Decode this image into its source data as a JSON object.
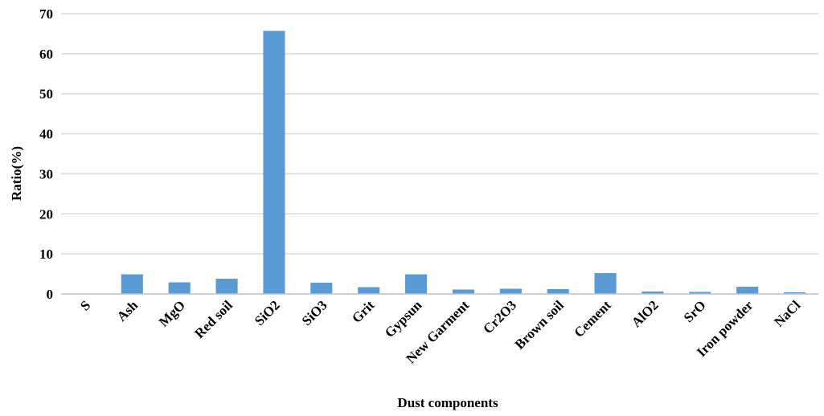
{
  "chart_data": {
    "type": "bar",
    "title": "",
    "xlabel": "Dust components",
    "ylabel": "Ratio(%)",
    "ylim": [
      0,
      70
    ],
    "yticks": [
      0,
      10,
      20,
      30,
      40,
      50,
      60,
      70
    ],
    "grid": "horizontal",
    "legend": "none",
    "categories": [
      "S",
      "Ash",
      "MgO",
      "Red soil",
      "SiO2",
      "SiO3",
      "Grit",
      "Gypsun",
      "New Garment",
      "Cr2O3",
      "Brown soil",
      "Cement",
      "AlO2",
      "SrO",
      "Iron powder",
      "NaCl"
    ],
    "values": [
      0,
      4.9,
      2.9,
      3.8,
      65.7,
      2.8,
      1.7,
      4.9,
      1.1,
      1.3,
      1.2,
      5.2,
      0.6,
      0.5,
      1.8,
      0.4
    ],
    "colors": {
      "bar": "#5b9bd5",
      "grid": "#d9d9d9",
      "axis": "#bfbfbf",
      "text": "#000000"
    }
  }
}
